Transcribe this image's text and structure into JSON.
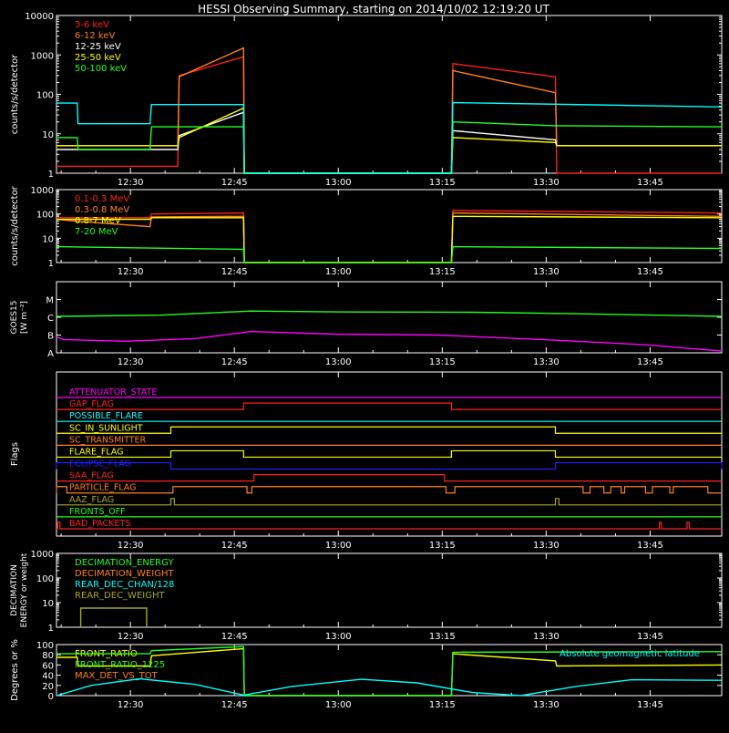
{
  "title": "HESSI Observing Summary, starting on 2014/10/02 12:19:20 UT",
  "colors": {
    "red": "#ff2020",
    "orange": "#ff7f1e",
    "yellow": "#ffff00",
    "green": "#22ff22",
    "cyan": "#00ffff",
    "magenta": "#ff00ff",
    "blue": "#2020ff",
    "olive": "#a6a62a",
    "white": "#ffffff"
  },
  "time_ticks": [
    "12:30",
    "12:45",
    "13:00",
    "13:15",
    "13:30",
    "13:45"
  ],
  "time_ticks_min": [
    10.67,
    25.67,
    40.67,
    55.67,
    70.67,
    85.67
  ],
  "x_range_min": [
    0,
    96
  ],
  "chart_data": [
    {
      "type": "line",
      "id": "panel1",
      "ylabel": "counts/s/detector",
      "log": true,
      "ylim": [
        1,
        10000
      ],
      "yticks": [
        "1",
        "10",
        "100",
        "1000",
        "10000"
      ],
      "ytick_values": [
        1,
        10,
        100,
        1000,
        10000
      ],
      "series": [
        {
          "name": "3-6 keV",
          "color": "red",
          "points": [
            [
              0,
              1.5
            ],
            [
              17.5,
              1.5
            ],
            [
              17.7,
              300
            ],
            [
              27,
              900
            ],
            [
              27.1,
              1
            ],
            [
              57,
              1
            ],
            [
              57.2,
              600
            ],
            [
              72,
              280
            ],
            [
              72.2,
              1
            ],
            [
              96,
              1
            ]
          ]
        },
        {
          "name": "6-12 keV",
          "color": "orange",
          "points": [
            [
              0,
              5
            ],
            [
              17.5,
              5
            ],
            [
              17.7,
              280
            ],
            [
              27,
              1500
            ],
            [
              27.1,
              1
            ],
            [
              57,
              1
            ],
            [
              57.2,
              400
            ],
            [
              72,
              110
            ],
            [
              72.2,
              5
            ],
            [
              96,
              5
            ]
          ]
        },
        {
          "name": "12-25 keV",
          "color": "white",
          "points": [
            [
              0,
              4
            ],
            [
              17.5,
              4
            ],
            [
              17.7,
              9
            ],
            [
              27,
              35
            ],
            [
              27.1,
              1
            ],
            [
              57,
              1
            ],
            [
              57.2,
              12
            ],
            [
              72,
              7
            ],
            [
              72.2,
              5
            ],
            [
              96,
              5
            ]
          ]
        },
        {
          "name": "25-50 keV",
          "color": "yellow",
          "points": [
            [
              0,
              5
            ],
            [
              17.5,
              5
            ],
            [
              17.7,
              8
            ],
            [
              27,
              45
            ],
            [
              27.1,
              1
            ],
            [
              57,
              1
            ],
            [
              57.2,
              8
            ],
            [
              72,
              6
            ],
            [
              72.2,
              5
            ],
            [
              96,
              5
            ]
          ]
        },
        {
          "name": "50-100 keV",
          "color": "green",
          "points": [
            [
              0,
              8
            ],
            [
              3,
              8
            ],
            [
              3.1,
              4
            ],
            [
              13.5,
              4
            ],
            [
              13.7,
              15
            ],
            [
              27,
              15
            ],
            [
              27.1,
              1
            ],
            [
              57,
              1
            ],
            [
              57.2,
              20
            ],
            [
              72,
              16
            ],
            [
              72.2,
              16
            ],
            [
              96,
              15
            ]
          ]
        },
        {
          "name": "",
          "color": "cyan",
          "points": [
            [
              0,
              60
            ],
            [
              3,
              60
            ],
            [
              3.1,
              18
            ],
            [
              13.5,
              18
            ],
            [
              13.7,
              55
            ],
            [
              27,
              55
            ],
            [
              27.1,
              1
            ],
            [
              57,
              1
            ],
            [
              57.2,
              62
            ],
            [
              96,
              48
            ]
          ]
        }
      ]
    },
    {
      "type": "line",
      "id": "panel2",
      "ylabel": "counts/s/detector",
      "log": true,
      "ylim": [
        1,
        1000
      ],
      "yticks": [
        "1",
        "10",
        "100",
        "1000"
      ],
      "ytick_values": [
        1,
        10,
        100,
        1000
      ],
      "series": [
        {
          "name": "0.1-0.3 MeV",
          "color": "red",
          "points": [
            [
              0,
              70
            ],
            [
              13.5,
              70
            ],
            [
              13.7,
              100
            ],
            [
              27,
              110
            ],
            [
              27.1,
              1
            ],
            [
              57,
              1
            ],
            [
              57.2,
              140
            ],
            [
              96,
              110
            ]
          ]
        },
        {
          "name": "0.3-0.8 MeV",
          "color": "orange",
          "points": [
            [
              0,
              60
            ],
            [
              3,
              50
            ],
            [
              13.5,
              30
            ],
            [
              13.7,
              75
            ],
            [
              27,
              80
            ],
            [
              27.1,
              1
            ],
            [
              57,
              1
            ],
            [
              57.2,
              110
            ],
            [
              96,
              80
            ]
          ]
        },
        {
          "name": "0.8-7 MeV",
          "color": "yellow",
          "points": [
            [
              0,
              60
            ],
            [
              13.5,
              60
            ],
            [
              13.7,
              70
            ],
            [
              27,
              70
            ],
            [
              27.1,
              1
            ],
            [
              57,
              1
            ],
            [
              57.2,
              80
            ],
            [
              96,
              70
            ]
          ]
        },
        {
          "name": "7-20 MeV",
          "color": "green",
          "points": [
            [
              0,
              4.5
            ],
            [
              27,
              3.5
            ],
            [
              27.1,
              1
            ],
            [
              57,
              1
            ],
            [
              57.2,
              4.5
            ],
            [
              96,
              3.8
            ]
          ]
        }
      ]
    },
    {
      "type": "line",
      "id": "panel3",
      "ylabel": "GOES15",
      "ylabel2": "[W m⁻²]",
      "ylim": [
        0,
        4
      ],
      "yticks": [
        "A",
        "B",
        "C",
        "M"
      ],
      "ytick_values": [
        0,
        1,
        2,
        3
      ],
      "series": [
        {
          "name": "",
          "color": "green",
          "points": [
            [
              0,
              2.05
            ],
            [
              15,
              2.12
            ],
            [
              28,
              2.35
            ],
            [
              40,
              2.3
            ],
            [
              60,
              2.28
            ],
            [
              75,
              2.2
            ],
            [
              96,
              2.05
            ]
          ]
        },
        {
          "name": "",
          "color": "magenta",
          "points": [
            [
              0,
              0.9
            ],
            [
              1,
              0.75
            ],
            [
              10,
              0.65
            ],
            [
              20,
              0.8
            ],
            [
              28,
              1.2
            ],
            [
              40,
              1.05
            ],
            [
              55,
              1.0
            ],
            [
              70,
              0.75
            ],
            [
              85,
              0.45
            ],
            [
              96,
              0.1
            ]
          ]
        }
      ]
    },
    {
      "type": "line",
      "id": "panel4",
      "ylabel": "Flags",
      "flags": [
        {
          "name": "ATTENUATOR_STATE",
          "color": "magenta",
          "on": []
        },
        {
          "name": "GAP_FLAG",
          "color": "red",
          "on": [
            [
              27,
              57
            ]
          ]
        },
        {
          "name": "POSSIBLE_FLARE",
          "color": "cyan",
          "on": []
        },
        {
          "name": "SC_IN_SUNLIGHT",
          "color": "yellow",
          "on": [
            [
              16.5,
              72
            ]
          ]
        },
        {
          "name": "SC_TRANSMITTER",
          "color": "orange",
          "on": []
        },
        {
          "name": "FLARE_FLAG",
          "color": "yellow",
          "on": [
            [
              16.5,
              27
            ],
            [
              57,
              72
            ]
          ]
        },
        {
          "name": "ECLIPSE_FLAG",
          "color": "blue",
          "on": [
            [
              0,
              16.5
            ],
            [
              72,
              96
            ]
          ]
        },
        {
          "name": "SAA_FLAG",
          "color": "red",
          "on": [
            [
              28.5,
              56
            ]
          ]
        },
        {
          "name": "PARTICLE_FLAG",
          "color": "orange",
          "on": [
            [
              0,
              1.5
            ],
            [
              16.8,
              27.5
            ],
            [
              28.2,
              56.2
            ],
            [
              57.5,
              76
            ],
            [
              77,
              79
            ],
            [
              80,
              81.5
            ],
            [
              82,
              85
            ],
            [
              86,
              88.5
            ],
            [
              89,
              94
            ]
          ]
        },
        {
          "name": "AAZ_FLAG",
          "color": "olive",
          "on": [
            [
              16.5,
              17
            ],
            [
              72,
              72.5
            ]
          ]
        },
        {
          "name": "FRONTS_OFF",
          "color": "green",
          "on": []
        },
        {
          "name": "BAD_PACKETS",
          "color": "red",
          "on": [
            [
              0.2,
              0.5
            ],
            [
              87,
              87.3
            ],
            [
              91,
              91.3
            ]
          ]
        }
      ]
    },
    {
      "type": "line",
      "id": "panel5",
      "ylabel": "DECIMATION",
      "ylabel2": "ENERGY or weight",
      "log": true,
      "ylim": [
        1,
        1000
      ],
      "yticks": [
        "1",
        "10",
        "100",
        "1000"
      ],
      "ytick_values": [
        1,
        10,
        100,
        1000
      ],
      "series": [
        {
          "name": "DECIMATION_ENERGY",
          "color": "green",
          "points": []
        },
        {
          "name": "DECIMATION_WEIGHT",
          "color": "orange",
          "points": []
        },
        {
          "name": "REAR_DEC_CHAN/128",
          "color": "cyan",
          "points": []
        },
        {
          "name": "REAR_DEC_WEIGHT",
          "color": "olive",
          "points": [
            [
              3.5,
              1
            ],
            [
              3.5,
              6
            ],
            [
              13,
              6
            ],
            [
              13,
              1
            ]
          ]
        }
      ]
    },
    {
      "type": "line",
      "id": "panel6",
      "ylabel": "Degrees or %",
      "ylim": [
        0,
        100
      ],
      "yticks": [
        "0",
        "20",
        "40",
        "60",
        "80",
        "100"
      ],
      "ytick_values": [
        0,
        20,
        40,
        60,
        80,
        100
      ],
      "annotation": "Absolute geomagnetic latitude",
      "series": [
        {
          "name": "FRONT_RATIO",
          "color": "yellow",
          "points": [
            [
              0,
              75
            ],
            [
              3,
              75
            ],
            [
              3.1,
              58
            ],
            [
              13.5,
              58
            ],
            [
              13.7,
              78
            ],
            [
              27,
              92
            ],
            [
              27.1,
              0
            ],
            [
              57,
              0
            ],
            [
              57.2,
              82
            ],
            [
              72,
              68
            ],
            [
              72.2,
              58
            ],
            [
              96,
              60
            ]
          ]
        },
        {
          "name": "FRONT_RATIO_1225",
          "color": "green",
          "points": [
            [
              0,
              82
            ],
            [
              13.5,
              82
            ],
            [
              13.7,
              88
            ],
            [
              27,
              96
            ],
            [
              27.1,
              0
            ],
            [
              57,
              0
            ],
            [
              57.2,
              85
            ],
            [
              96,
              86
            ]
          ]
        },
        {
          "name": "MAX_DET_VS_TOT",
          "color": "orange",
          "points": []
        },
        {
          "name": "",
          "color": "cyan",
          "points": [
            [
              0,
              0
            ],
            [
              5,
              20
            ],
            [
              12,
              33
            ],
            [
              20,
              22
            ],
            [
              27,
              1
            ],
            [
              34,
              18
            ],
            [
              44,
              32
            ],
            [
              52,
              25
            ],
            [
              60,
              6
            ],
            [
              67,
              0
            ],
            [
              75,
              18
            ],
            [
              83,
              31
            ],
            [
              96,
              30
            ]
          ]
        }
      ]
    }
  ]
}
